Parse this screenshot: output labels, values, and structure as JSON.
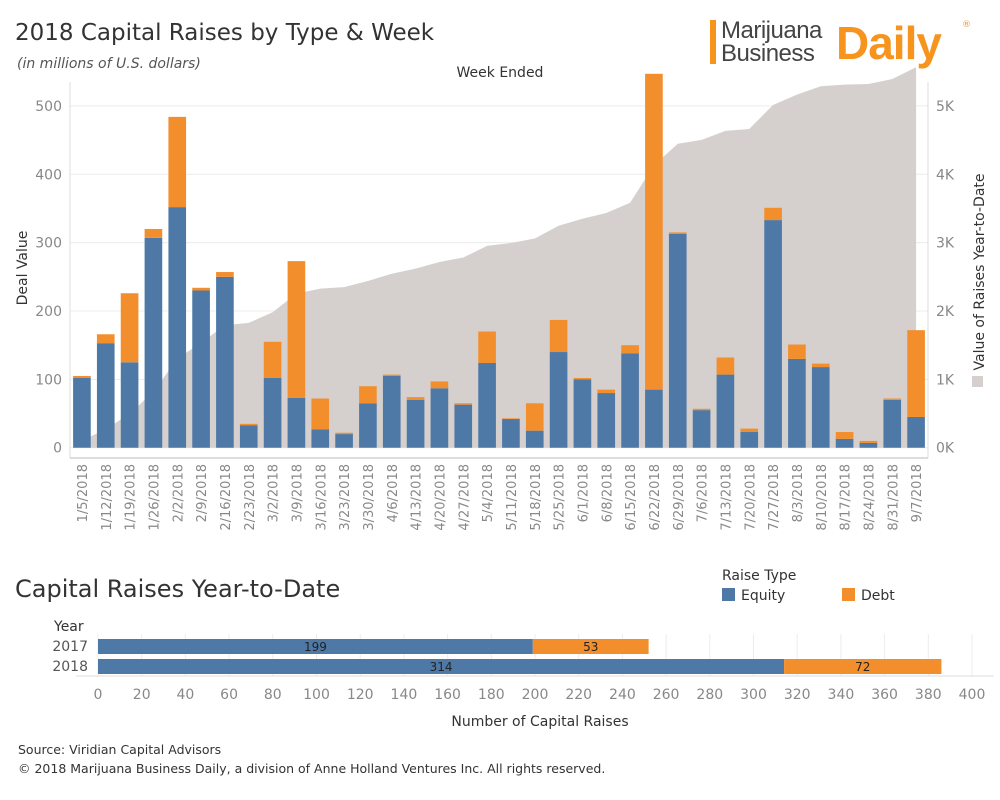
{
  "header": {
    "title": "2018 Capital Raises by Type & Week",
    "subtitle": "(in millions of U.S. dollars)"
  },
  "logo": {
    "line1": "Marijuana",
    "line2": "Business",
    "daily": "Daily",
    "reg": "®"
  },
  "colors": {
    "equity": "#4e79a7",
    "debt": "#f28e2b",
    "cumulative": "#d5d0ce",
    "grid": "#ececec",
    "axis_text": "#888888"
  },
  "chart_data": [
    {
      "type": "bar",
      "stacked": true,
      "top_axis_label": "Week Ended",
      "ylabel": "Deal Value",
      "y2label": "Value of Raises Year-to-Date",
      "ylim": [
        -15,
        535
      ],
      "y2lim": [
        -150,
        5350
      ],
      "yticks": [
        0,
        100,
        200,
        300,
        400,
        500
      ],
      "y2ticks": [
        {
          "value": 0,
          "label": "0K"
        },
        {
          "value": 1000,
          "label": "1K"
        },
        {
          "value": 2000,
          "label": "2K"
        },
        {
          "value": 3000,
          "label": "3K"
        },
        {
          "value": 4000,
          "label": "4K"
        },
        {
          "value": 5000,
          "label": "5K"
        }
      ],
      "grid": true,
      "categories": [
        "1/5/2018",
        "1/12/2018",
        "1/19/2018",
        "1/26/2018",
        "2/2/2018",
        "2/9/2018",
        "2/16/2018",
        "2/23/2018",
        "3/2/2018",
        "3/9/2018",
        "3/16/2018",
        "3/23/2018",
        "3/30/2018",
        "4/6/2018",
        "4/13/2018",
        "4/20/2018",
        "4/27/2018",
        "5/4/2018",
        "5/11/2018",
        "5/18/2018",
        "5/25/2018",
        "6/1/2018",
        "6/8/2018",
        "6/15/2018",
        "6/22/2018",
        "6/29/2018",
        "7/6/2018",
        "7/13/2018",
        "7/20/2018",
        "7/27/2018",
        "8/3/2018",
        "8/10/2018",
        "8/17/2018",
        "8/24/2018",
        "8/31/2018",
        "9/7/2018"
      ],
      "series": [
        {
          "name": "Equity",
          "values": [
            102,
            153,
            125,
            307,
            352,
            230,
            250,
            33,
            102,
            73,
            27,
            20,
            65,
            105,
            70,
            87,
            63,
            124,
            42,
            25,
            140,
            100,
            80,
            138,
            85,
            313,
            55,
            107,
            23,
            333,
            130,
            118,
            13,
            7,
            70,
            45
          ]
        },
        {
          "name": "Debt",
          "values": [
            3,
            13,
            101,
            13,
            132,
            4,
            7,
            2,
            53,
            200,
            45,
            2,
            25,
            2,
            4,
            10,
            2,
            46,
            1,
            40,
            47,
            2,
            5,
            12,
            462,
            2,
            2,
            25,
            5,
            18,
            21,
            5,
            10,
            3,
            2,
            127
          ]
        }
      ],
      "cumulative": {
        "name": "Value of Raises Year-to-Date",
        "values": [
          105,
          271,
          497,
          817,
          1301,
          1535,
          1792,
          1827,
          1982,
          2255,
          2327,
          2349,
          2439,
          2546,
          2620,
          2717,
          2782,
          2952,
          2995,
          3060,
          3247,
          3349,
          3434,
          3584,
          4131,
          4446,
          4503,
          4635,
          4663,
          5014,
          5165,
          5288,
          5311,
          5321,
          5393,
          5565
        ]
      }
    },
    {
      "type": "bar",
      "orientation": "horizontal",
      "stacked": true,
      "title": "Capital Raises Year-to-Date",
      "group_label": "Year",
      "xlabel": "Number of Capital Raises",
      "xlim": [
        -10,
        410
      ],
      "xticks": [
        0,
        20,
        40,
        60,
        80,
        100,
        120,
        140,
        160,
        180,
        200,
        220,
        240,
        260,
        280,
        300,
        320,
        340,
        360,
        380,
        400
      ],
      "categories": [
        "2017",
        "2018"
      ],
      "series": [
        {
          "name": "Equity",
          "values": [
            199,
            314
          ]
        },
        {
          "name": "Debt",
          "values": [
            53,
            72
          ]
        }
      ],
      "legend": {
        "title": "Raise Type",
        "position": "top-right",
        "items": [
          "Equity",
          "Debt"
        ]
      }
    }
  ],
  "footer": {
    "source": "Source: Viridian Capital Advisors",
    "copyright": "© 2018 Marijuana Business Daily, a division of Anne Holland Ventures Inc. All rights reserved."
  }
}
